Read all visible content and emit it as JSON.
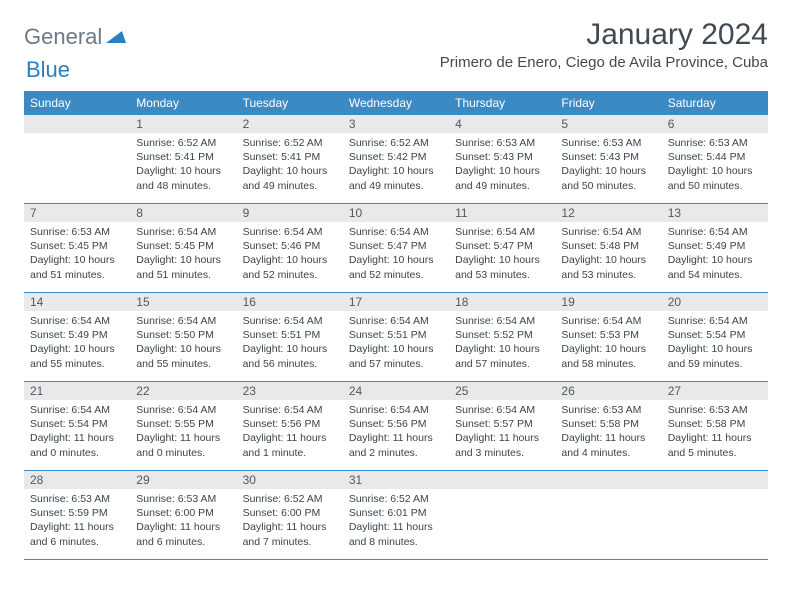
{
  "logo": {
    "general": "General",
    "blue": "Blue",
    "icon_color": "#2b7fbf"
  },
  "header": {
    "month_title": "January 2024",
    "location": "Primero de Enero, Ciego de Avila Province, Cuba"
  },
  "colors": {
    "header_bar": "#3b8ac4",
    "daynum_bg": "#e9e9e9",
    "text": "#3a444c",
    "title_text": "#414a52",
    "logo_gray": "#6b7a85",
    "logo_blue": "#2b7fbf",
    "white": "#ffffff"
  },
  "weekdays": [
    "Sunday",
    "Monday",
    "Tuesday",
    "Wednesday",
    "Thursday",
    "Friday",
    "Saturday"
  ],
  "weeks": [
    [
      {
        "day": "",
        "sunrise": "",
        "sunset": "",
        "daylight": ""
      },
      {
        "day": "1",
        "sunrise": "Sunrise: 6:52 AM",
        "sunset": "Sunset: 5:41 PM",
        "daylight": "Daylight: 10 hours and 48 minutes."
      },
      {
        "day": "2",
        "sunrise": "Sunrise: 6:52 AM",
        "sunset": "Sunset: 5:41 PM",
        "daylight": "Daylight: 10 hours and 49 minutes."
      },
      {
        "day": "3",
        "sunrise": "Sunrise: 6:52 AM",
        "sunset": "Sunset: 5:42 PM",
        "daylight": "Daylight: 10 hours and 49 minutes."
      },
      {
        "day": "4",
        "sunrise": "Sunrise: 6:53 AM",
        "sunset": "Sunset: 5:43 PM",
        "daylight": "Daylight: 10 hours and 49 minutes."
      },
      {
        "day": "5",
        "sunrise": "Sunrise: 6:53 AM",
        "sunset": "Sunset: 5:43 PM",
        "daylight": "Daylight: 10 hours and 50 minutes."
      },
      {
        "day": "6",
        "sunrise": "Sunrise: 6:53 AM",
        "sunset": "Sunset: 5:44 PM",
        "daylight": "Daylight: 10 hours and 50 minutes."
      }
    ],
    [
      {
        "day": "7",
        "sunrise": "Sunrise: 6:53 AM",
        "sunset": "Sunset: 5:45 PM",
        "daylight": "Daylight: 10 hours and 51 minutes."
      },
      {
        "day": "8",
        "sunrise": "Sunrise: 6:54 AM",
        "sunset": "Sunset: 5:45 PM",
        "daylight": "Daylight: 10 hours and 51 minutes."
      },
      {
        "day": "9",
        "sunrise": "Sunrise: 6:54 AM",
        "sunset": "Sunset: 5:46 PM",
        "daylight": "Daylight: 10 hours and 52 minutes."
      },
      {
        "day": "10",
        "sunrise": "Sunrise: 6:54 AM",
        "sunset": "Sunset: 5:47 PM",
        "daylight": "Daylight: 10 hours and 52 minutes."
      },
      {
        "day": "11",
        "sunrise": "Sunrise: 6:54 AM",
        "sunset": "Sunset: 5:47 PM",
        "daylight": "Daylight: 10 hours and 53 minutes."
      },
      {
        "day": "12",
        "sunrise": "Sunrise: 6:54 AM",
        "sunset": "Sunset: 5:48 PM",
        "daylight": "Daylight: 10 hours and 53 minutes."
      },
      {
        "day": "13",
        "sunrise": "Sunrise: 6:54 AM",
        "sunset": "Sunset: 5:49 PM",
        "daylight": "Daylight: 10 hours and 54 minutes."
      }
    ],
    [
      {
        "day": "14",
        "sunrise": "Sunrise: 6:54 AM",
        "sunset": "Sunset: 5:49 PM",
        "daylight": "Daylight: 10 hours and 55 minutes."
      },
      {
        "day": "15",
        "sunrise": "Sunrise: 6:54 AM",
        "sunset": "Sunset: 5:50 PM",
        "daylight": "Daylight: 10 hours and 55 minutes."
      },
      {
        "day": "16",
        "sunrise": "Sunrise: 6:54 AM",
        "sunset": "Sunset: 5:51 PM",
        "daylight": "Daylight: 10 hours and 56 minutes."
      },
      {
        "day": "17",
        "sunrise": "Sunrise: 6:54 AM",
        "sunset": "Sunset: 5:51 PM",
        "daylight": "Daylight: 10 hours and 57 minutes."
      },
      {
        "day": "18",
        "sunrise": "Sunrise: 6:54 AM",
        "sunset": "Sunset: 5:52 PM",
        "daylight": "Daylight: 10 hours and 57 minutes."
      },
      {
        "day": "19",
        "sunrise": "Sunrise: 6:54 AM",
        "sunset": "Sunset: 5:53 PM",
        "daylight": "Daylight: 10 hours and 58 minutes."
      },
      {
        "day": "20",
        "sunrise": "Sunrise: 6:54 AM",
        "sunset": "Sunset: 5:54 PM",
        "daylight": "Daylight: 10 hours and 59 minutes."
      }
    ],
    [
      {
        "day": "21",
        "sunrise": "Sunrise: 6:54 AM",
        "sunset": "Sunset: 5:54 PM",
        "daylight": "Daylight: 11 hours and 0 minutes."
      },
      {
        "day": "22",
        "sunrise": "Sunrise: 6:54 AM",
        "sunset": "Sunset: 5:55 PM",
        "daylight": "Daylight: 11 hours and 0 minutes."
      },
      {
        "day": "23",
        "sunrise": "Sunrise: 6:54 AM",
        "sunset": "Sunset: 5:56 PM",
        "daylight": "Daylight: 11 hours and 1 minute."
      },
      {
        "day": "24",
        "sunrise": "Sunrise: 6:54 AM",
        "sunset": "Sunset: 5:56 PM",
        "daylight": "Daylight: 11 hours and 2 minutes."
      },
      {
        "day": "25",
        "sunrise": "Sunrise: 6:54 AM",
        "sunset": "Sunset: 5:57 PM",
        "daylight": "Daylight: 11 hours and 3 minutes."
      },
      {
        "day": "26",
        "sunrise": "Sunrise: 6:53 AM",
        "sunset": "Sunset: 5:58 PM",
        "daylight": "Daylight: 11 hours and 4 minutes."
      },
      {
        "day": "27",
        "sunrise": "Sunrise: 6:53 AM",
        "sunset": "Sunset: 5:58 PM",
        "daylight": "Daylight: 11 hours and 5 minutes."
      }
    ],
    [
      {
        "day": "28",
        "sunrise": "Sunrise: 6:53 AM",
        "sunset": "Sunset: 5:59 PM",
        "daylight": "Daylight: 11 hours and 6 minutes."
      },
      {
        "day": "29",
        "sunrise": "Sunrise: 6:53 AM",
        "sunset": "Sunset: 6:00 PM",
        "daylight": "Daylight: 11 hours and 6 minutes."
      },
      {
        "day": "30",
        "sunrise": "Sunrise: 6:52 AM",
        "sunset": "Sunset: 6:00 PM",
        "daylight": "Daylight: 11 hours and 7 minutes."
      },
      {
        "day": "31",
        "sunrise": "Sunrise: 6:52 AM",
        "sunset": "Sunset: 6:01 PM",
        "daylight": "Daylight: 11 hours and 8 minutes."
      },
      {
        "day": "",
        "sunrise": "",
        "sunset": "",
        "daylight": ""
      },
      {
        "day": "",
        "sunrise": "",
        "sunset": "",
        "daylight": ""
      },
      {
        "day": "",
        "sunrise": "",
        "sunset": "",
        "daylight": ""
      }
    ]
  ]
}
